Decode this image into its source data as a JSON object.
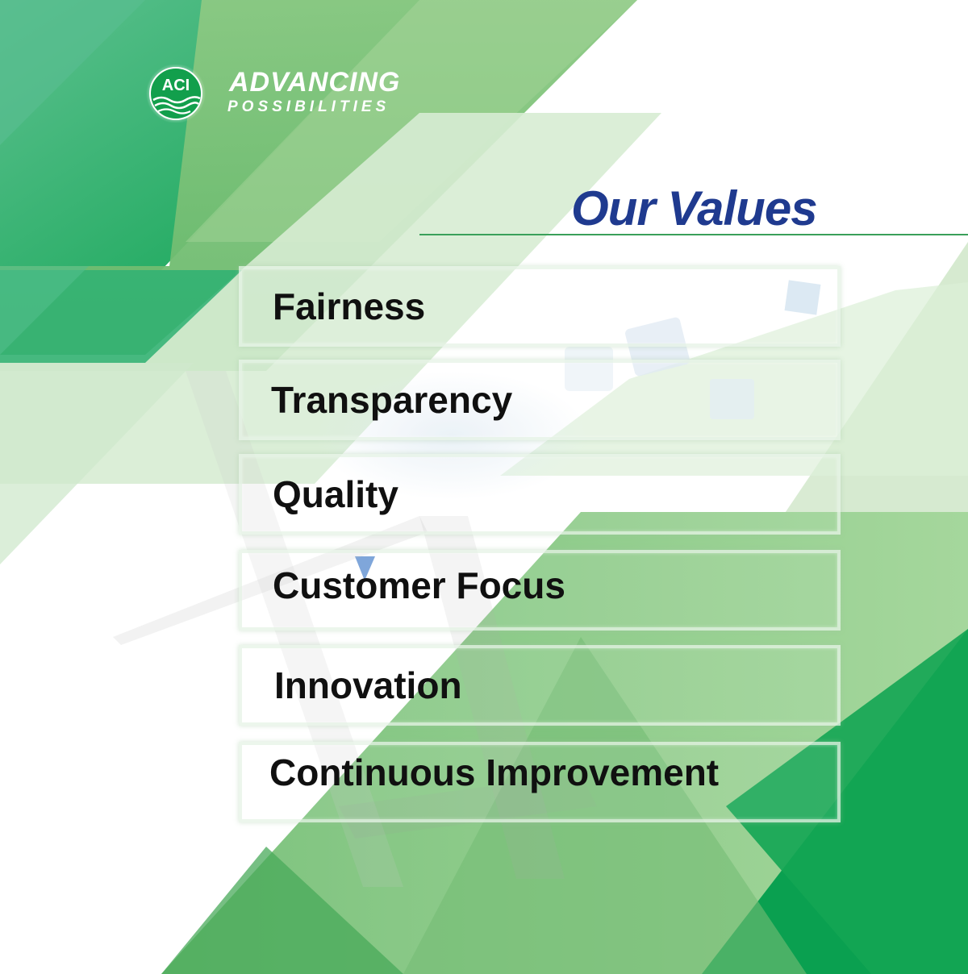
{
  "brand": {
    "logo_text": "ACI",
    "tagline_primary": "ADVANCING",
    "tagline_secondary": "POSSIBILITIES"
  },
  "heading": "Our Values",
  "values": [
    "Fairness",
    "Transparency",
    "Quality",
    "Customer Focus",
    "Innovation",
    "Continuous Improvement"
  ],
  "colors": {
    "brand_green": "#0a9f4a",
    "mid_green": "#5db463",
    "light_green": "#cfe8cc",
    "heading_blue": "#1f3a8f",
    "text": "#101010"
  }
}
